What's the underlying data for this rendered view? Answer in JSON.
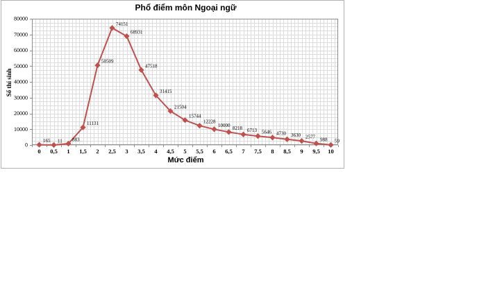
{
  "chart": {
    "frame_border_color": "#b0b0b0",
    "plot_border_color": "#8c8c8c",
    "grid_color": "#dcdcdc",
    "line_color": "#c0504d",
    "marker_color": "#c0504d",
    "tick_color": "#8c8c8c",
    "text_color": "#000000"
  },
  "chart_data": {
    "type": "line",
    "title": "Phổ điểm môn Ngoại ngữ",
    "xlabel": "Mức điểm",
    "ylabel": "Số thí sinh",
    "categories": [
      "0",
      "0,5",
      "1",
      "1,5",
      "2",
      "2,5",
      "3",
      "3,5",
      "4",
      "4,5",
      "5",
      "5,5",
      "6",
      "6,5",
      "7",
      "7,5",
      "8",
      "8,5",
      "9",
      "9,5",
      "10"
    ],
    "values": [
      165,
      11,
      883,
      11131,
      50509,
      74151,
      68931,
      47518,
      31415,
      21504,
      15744,
      12228,
      10000,
      8218,
      6713,
      5646,
      4730,
      3630,
      2577,
      988,
      59
    ],
    "data_labels": [
      "165",
      "11",
      "883",
      "11131",
      "50509",
      "74151",
      "68931",
      "47518",
      "31415",
      "21504",
      "15744",
      "12228",
      "10000",
      "8218",
      "6713",
      "5646",
      "4730",
      "3630",
      "2577",
      "988",
      "59"
    ],
    "ylim": [
      0,
      80000
    ],
    "ytick_step": 10000,
    "ytick_labels": [
      "0",
      "10000",
      "20000",
      "30000",
      "40000",
      "50000",
      "60000",
      "70000",
      "80000"
    ],
    "y_minor_step": 2500,
    "x_minor_divisions": 4,
    "grid": true,
    "legend": false,
    "marker": "diamond",
    "legend_position": "none"
  }
}
